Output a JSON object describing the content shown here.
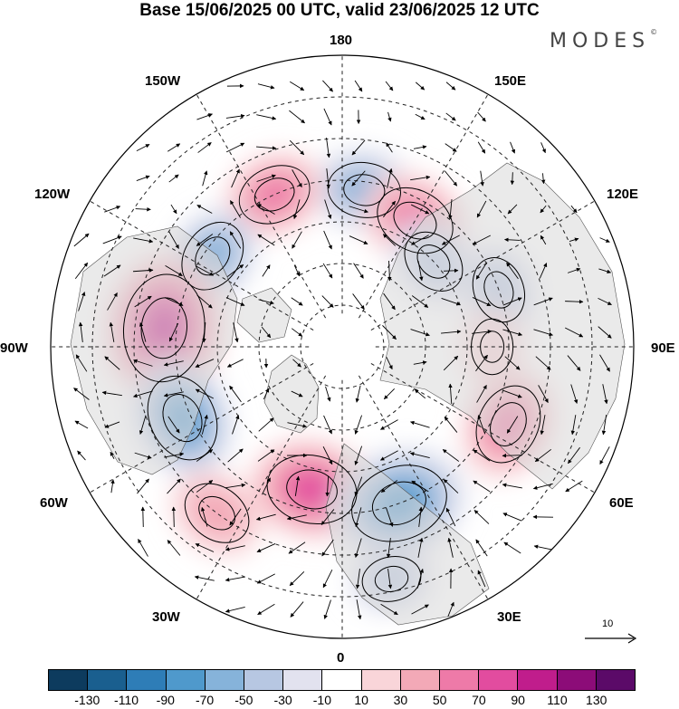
{
  "title": "Base 15/06/2025 00 UTC, valid 23/06/2025 12 UTC",
  "brand": {
    "text": "MODES",
    "mark": "©"
  },
  "longitude_labels": {
    "lon_180": "180",
    "lon_150w": "150W",
    "lon_150e": "150E",
    "lon_120w": "120W",
    "lon_120e": "120E",
    "lon_90w": "90W",
    "lon_90e": "90E",
    "lon_60w": "60W",
    "lon_60e": "60E",
    "lon_30w": "30W",
    "lon_30e": "30E",
    "lon_0": "0"
  },
  "wind_scale": {
    "value": "10"
  },
  "colorbar": {
    "colors": [
      "#0d3b5e",
      "#1a5f8f",
      "#2e7db7",
      "#4f99cc",
      "#86b3da",
      "#b7c7e2",
      "#e2e2ef",
      "#ffffff",
      "#f9d5d9",
      "#f3a9b7",
      "#ee7aa8",
      "#e24c9f",
      "#c01d8c",
      "#8c0c78",
      "#5b0a68"
    ],
    "ticks": [
      "-130",
      "-110",
      "-90",
      "-70",
      "-50",
      "-30",
      "-10",
      "10",
      "30",
      "50",
      "70",
      "90",
      "110",
      "130"
    ]
  },
  "anomaly_centers": [
    {
      "lon": 172,
      "lat": 52,
      "value": -60
    },
    {
      "lon": 150,
      "lat": 55,
      "value": 70
    },
    {
      "lon": -156,
      "lat": 50,
      "value": 60
    },
    {
      "lon": -125,
      "lat": 52,
      "value": -60
    },
    {
      "lon": -96,
      "lat": 47,
      "value": 110
    },
    {
      "lon": -66,
      "lat": 48,
      "value": -80
    },
    {
      "lon": -12,
      "lat": 55,
      "value": 85
    },
    {
      "lon": 20,
      "lat": 50,
      "value": -95
    },
    {
      "lon": 65,
      "lat": 46,
      "value": 70
    },
    {
      "lon": 110,
      "lat": 50,
      "value": -50
    },
    {
      "lon": 133,
      "lat": 60,
      "value": -50
    },
    {
      "lon": -37,
      "lat": 40,
      "value": 55
    },
    {
      "lon": 90,
      "lat": 54,
      "value": 35
    },
    {
      "lon": 12,
      "lat": 33,
      "value": -40
    }
  ]
}
